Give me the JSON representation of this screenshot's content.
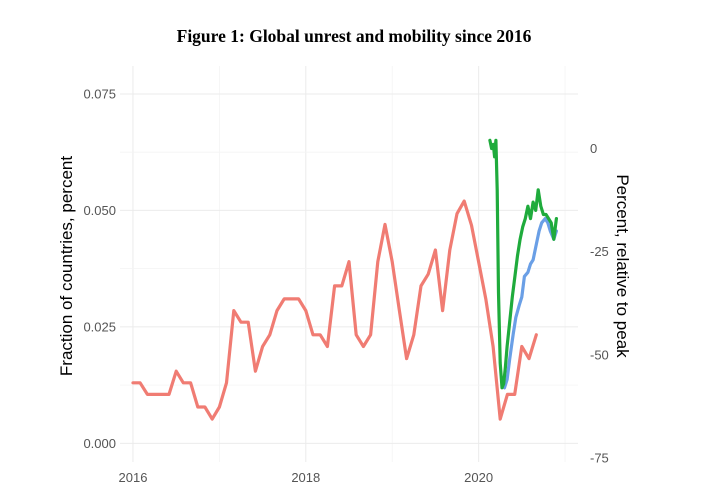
{
  "chart_data": {
    "type": "line",
    "title": "Figure 1: Global unrest and mobility since 2016",
    "ylabel": "Fraction of countries, percent",
    "y2label": "Percent, relative to peak",
    "xlim": [
      2015.85,
      2021.15
    ],
    "ylim": [
      -0.004,
      0.081
    ],
    "y2lim": [
      -76,
      20
    ],
    "x_ticks": [
      "2016",
      "2018",
      "2020"
    ],
    "y_ticks": [
      "0.000",
      "0.025",
      "0.050",
      "0.075"
    ],
    "y2_ticks": [
      "0",
      "-25",
      "-50",
      "-75"
    ],
    "grid": true,
    "legend": "none",
    "series": [
      {
        "axis": "left",
        "color": "#f07c73",
        "x": [
          2016.0,
          2016.083,
          2016.167,
          2016.25,
          2016.333,
          2016.417,
          2016.5,
          2016.583,
          2016.667,
          2016.75,
          2016.833,
          2016.917,
          2017.0,
          2017.083,
          2017.167,
          2017.25,
          2017.333,
          2017.417,
          2017.5,
          2017.583,
          2017.667,
          2017.75,
          2017.833,
          2017.917,
          2018.0,
          2018.083,
          2018.167,
          2018.25,
          2018.333,
          2018.417,
          2018.5,
          2018.583,
          2018.667,
          2018.75,
          2018.833,
          2018.917,
          2019.0,
          2019.083,
          2019.167,
          2019.25,
          2019.333,
          2019.417,
          2019.5,
          2019.583,
          2019.667,
          2019.75,
          2019.833,
          2019.917,
          2020.0,
          2020.083,
          2020.167,
          2020.25,
          2020.333,
          2020.417,
          2020.5,
          2020.583,
          2020.667
        ],
        "values": [
          0.013,
          0.013,
          0.0105,
          0.0105,
          0.0105,
          0.0105,
          0.0155,
          0.013,
          0.013,
          0.0078,
          0.0078,
          0.0052,
          0.0078,
          0.013,
          0.0285,
          0.026,
          0.026,
          0.0155,
          0.0208,
          0.0233,
          0.0285,
          0.031,
          0.031,
          0.031,
          0.0285,
          0.0233,
          0.0233,
          0.0208,
          0.0338,
          0.0338,
          0.039,
          0.0233,
          0.0208,
          0.0233,
          0.039,
          0.047,
          0.039,
          0.0285,
          0.0182,
          0.0233,
          0.0338,
          0.0363,
          0.0415,
          0.0285,
          0.0415,
          0.0493,
          0.052,
          0.0468,
          0.039,
          0.031,
          0.0208,
          0.0052,
          0.0105,
          0.0105,
          0.0208,
          0.0182,
          0.0233
        ]
      },
      {
        "axis": "right",
        "color": "#6a9fe6",
        "x": [
          2020.3,
          2020.33,
          2020.36,
          2020.4,
          2020.43,
          2020.47,
          2020.5,
          2020.53,
          2020.57,
          2020.6,
          2020.63,
          2020.67,
          2020.7,
          2020.73,
          2020.77,
          2020.8,
          2020.83,
          2020.87,
          2020.9
        ],
        "values": [
          -58,
          -56,
          -51,
          -45,
          -41,
          -38,
          -36,
          -31,
          -30,
          -28,
          -27,
          -23,
          -20,
          -18,
          -17,
          -18,
          -20,
          -22,
          -20
        ]
      },
      {
        "axis": "right",
        "color": "#1fab3c",
        "x": [
          2020.13,
          2020.15,
          2020.17,
          2020.185,
          2020.2,
          2020.215,
          2020.23,
          2020.25,
          2020.27,
          2020.29,
          2020.31,
          2020.33,
          2020.36,
          2020.39,
          2020.42,
          2020.45,
          2020.48,
          2020.51,
          2020.54,
          2020.57,
          2020.6,
          2020.63,
          2020.66,
          2020.69,
          2020.72,
          2020.75,
          2020.78,
          2020.81,
          2020.84,
          2020.87,
          2020.9
        ],
        "values": [
          2,
          0,
          1,
          -2,
          2,
          -10,
          -35,
          -52,
          -58,
          -57,
          -53,
          -48,
          -42,
          -36,
          -31,
          -26,
          -22,
          -19,
          -17,
          -14,
          -17,
          -13,
          -15,
          -10,
          -14,
          -16,
          -16,
          -17,
          -18,
          -22,
          -17
        ]
      }
    ]
  }
}
